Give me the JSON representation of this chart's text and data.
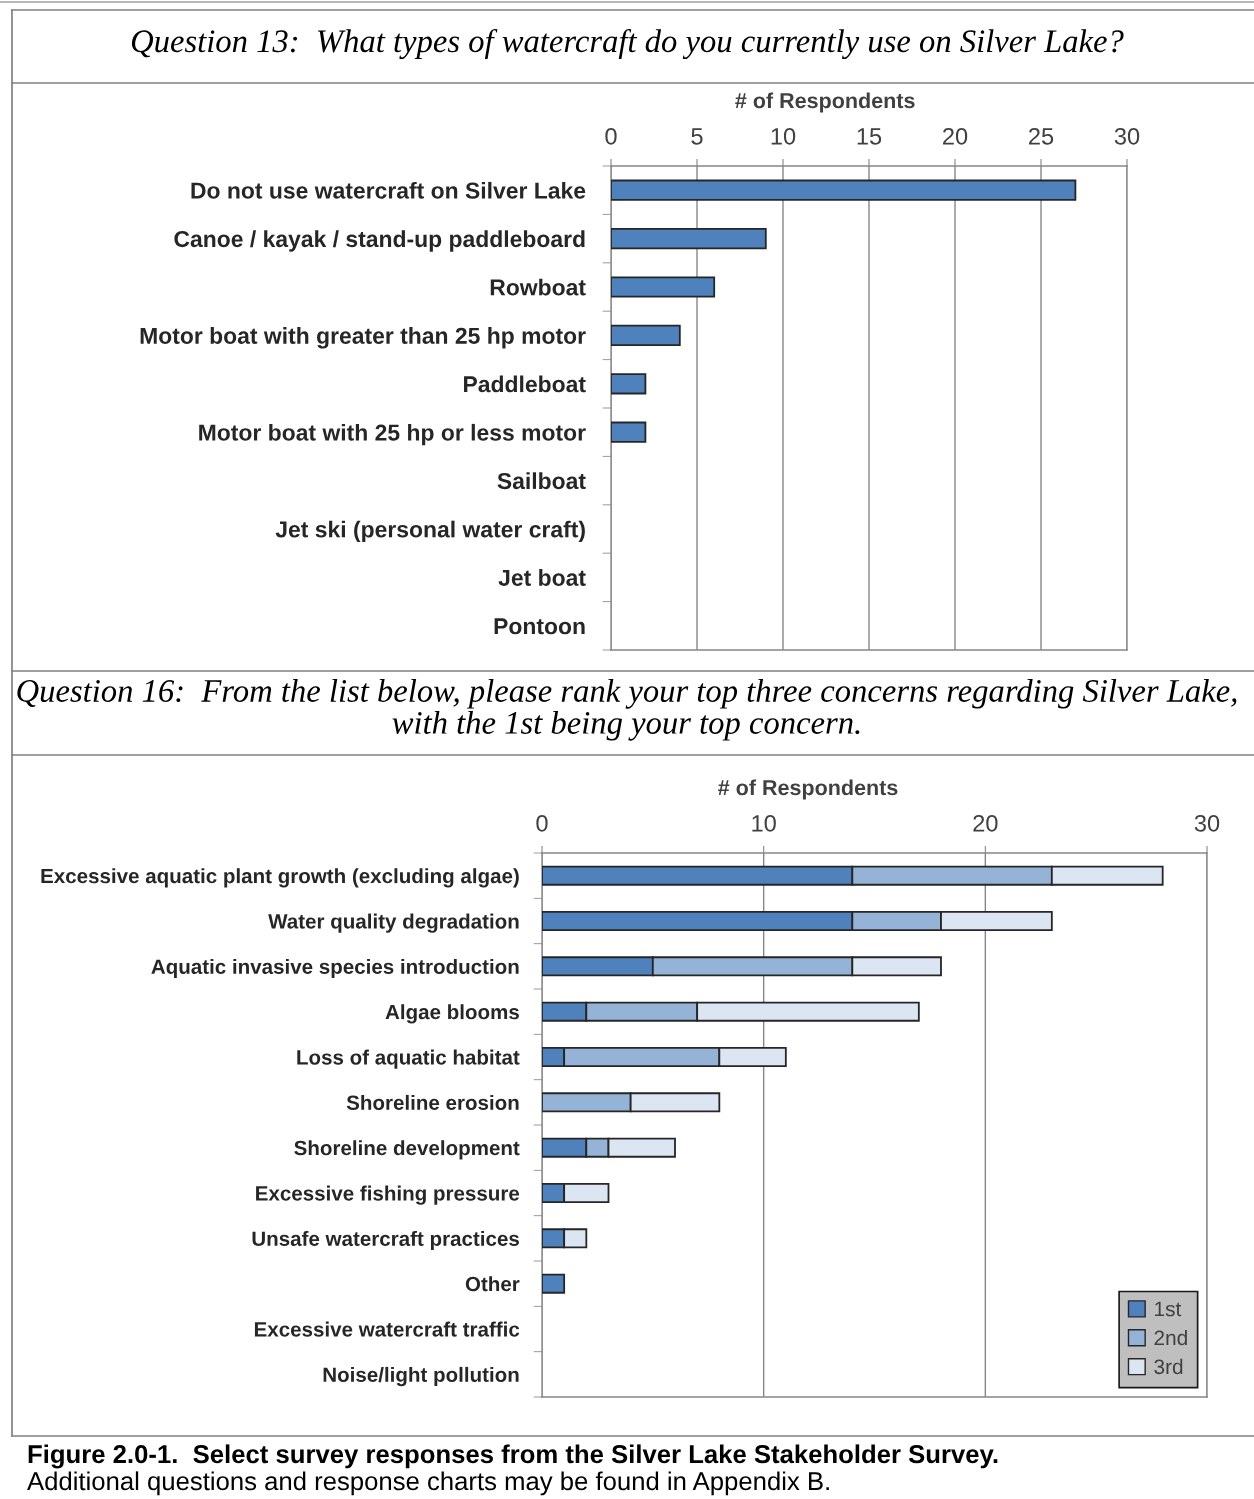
{
  "chart_data": [
    {
      "type": "bar",
      "orientation": "horizontal",
      "title": "Question 13:  What types of watercraft do you currently use on Silver Lake?",
      "xlabel": "# of Respondents",
      "categories": [
        "Do not use watercraft on Silver Lake",
        "Canoe / kayak / stand-up paddleboard",
        "Rowboat",
        "Motor boat with greater than 25 hp motor",
        "Paddleboat",
        "Motor boat with 25 hp or less motor",
        "Sailboat",
        "Jet ski (personal water craft)",
        "Jet boat",
        "Pontoon"
      ],
      "values": [
        27,
        9,
        6,
        4,
        2,
        2,
        0,
        0,
        0,
        0
      ],
      "color": "#4f81bd",
      "xlim": [
        0,
        30
      ],
      "xticks": [
        0,
        5,
        10,
        15,
        20,
        25,
        30
      ],
      "grid": "x"
    },
    {
      "type": "bar",
      "orientation": "horizontal",
      "stacked": true,
      "title": "Question 16:  From the list below, please rank your top three concerns regarding Silver Lake, with the 1st being your top concern.",
      "xlabel": "# of Respondents",
      "categories": [
        "Excessive aquatic plant growth (excluding algae)",
        "Water quality degradation",
        "Aquatic invasive species introduction",
        "Algae blooms",
        "Loss of aquatic habitat",
        "Shoreline erosion",
        "Shoreline development",
        "Excessive fishing pressure",
        "Unsafe watercraft practices",
        "Other",
        "Excessive watercraft traffic",
        "Noise/light pollution"
      ],
      "series": [
        {
          "name": "1st",
          "color": "#4f81bd",
          "values": [
            14,
            14,
            5,
            2,
            1,
            0,
            2,
            1,
            1,
            1,
            0,
            0
          ]
        },
        {
          "name": "2nd",
          "color": "#95b3d7",
          "values": [
            9,
            4,
            9,
            5,
            7,
            4,
            1,
            0,
            0,
            0,
            0,
            0
          ]
        },
        {
          "name": "3rd",
          "color": "#dce6f2",
          "values": [
            5,
            5,
            4,
            10,
            3,
            4,
            3,
            2,
            1,
            0,
            0,
            0
          ]
        }
      ],
      "xlim": [
        0,
        30
      ],
      "xticks": [
        0,
        10,
        20,
        30
      ],
      "grid": "x",
      "legend": "bottom right",
      "annotations": [
        "Figure 2.0-1.  Select survey responses from the Silver Lake Stakeholder Survey.",
        "Additional questions and response charts may be found in Appendix B."
      ]
    }
  ]
}
